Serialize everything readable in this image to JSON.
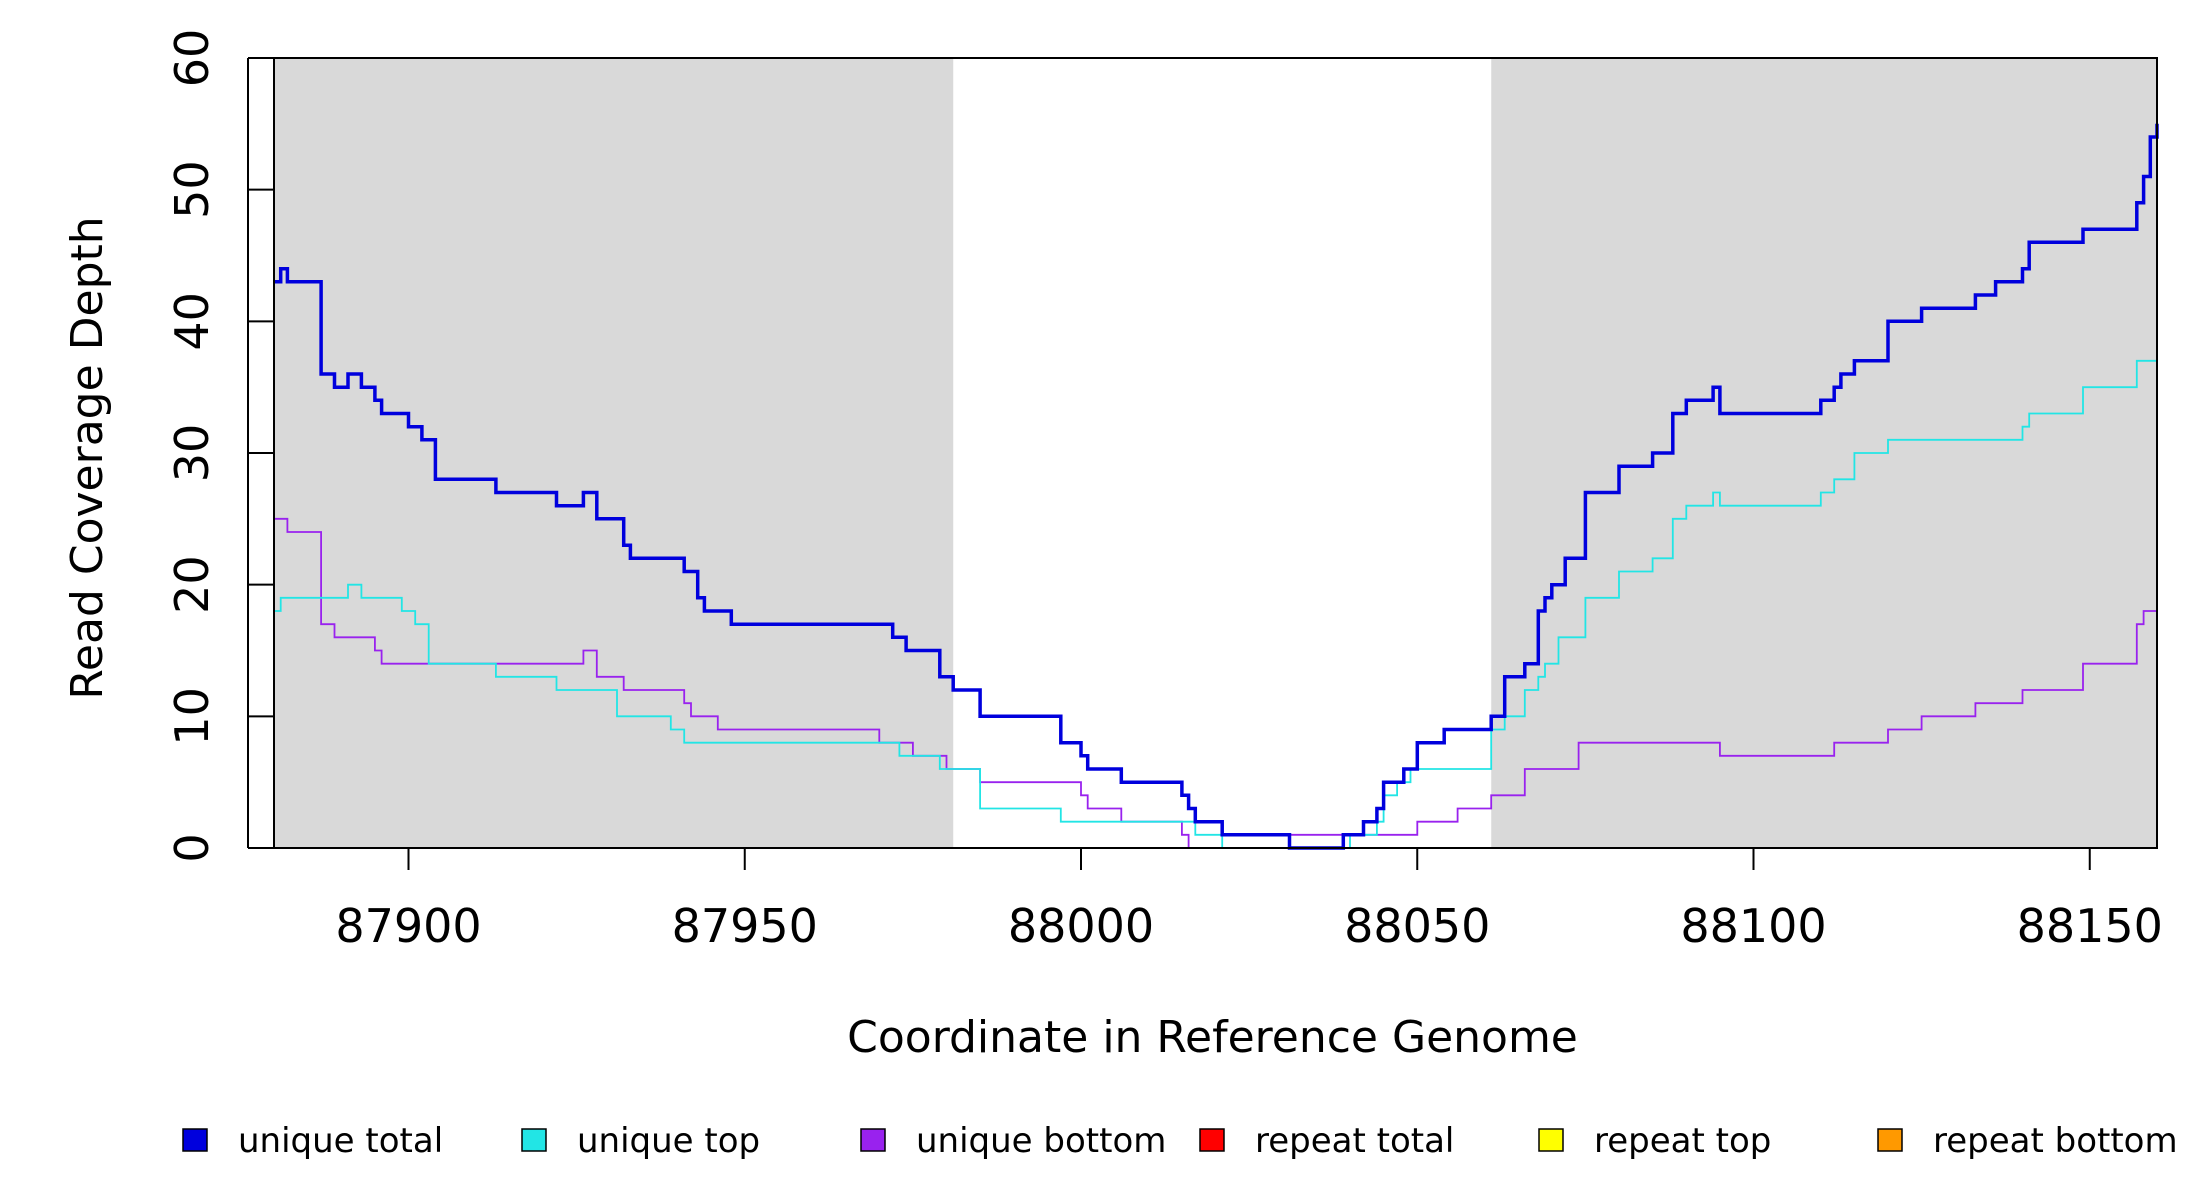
{
  "chart_data": {
    "type": "line",
    "title": "",
    "xlabel": "Coordinate in Reference Genome",
    "ylabel": "Read Coverage Depth",
    "xlim": [
      87880,
      88160
    ],
    "ylim": [
      0,
      60
    ],
    "x_ticks": [
      87900,
      87950,
      88000,
      88050,
      88100,
      88150
    ],
    "x_tick_labels": [
      "87900",
      "87950",
      "88000",
      "88050",
      "88100",
      "88150"
    ],
    "y_ticks": [
      0,
      10,
      20,
      30,
      40,
      50,
      60
    ],
    "y_tick_labels": [
      "0",
      "10",
      "20",
      "30",
      "40",
      "50",
      "60"
    ],
    "shaded_regions": [
      {
        "x0": 87880,
        "x1": 87981,
        "color": "#d9d9d9"
      },
      {
        "x0": 88061,
        "x1": 88160,
        "color": "#d9d9d9"
      }
    ],
    "grid": false,
    "legend_position": "bottom",
    "series": [
      {
        "name": "unique total",
        "color": "#0000dd",
        "style": "step",
        "width": "thick",
        "x": [
          87880,
          87881,
          87882,
          87887,
          87889,
          87891,
          87893,
          87895,
          87896,
          87897,
          87900,
          87902,
          87904,
          87913,
          87922,
          87926,
          87928,
          87932,
          87933,
          87941,
          87943,
          87944,
          87948,
          87963,
          87972,
          87974,
          87979,
          87981,
          87985,
          87997,
          88000,
          88001,
          88006,
          88015,
          88016,
          88017,
          88021,
          88031,
          88039,
          88042,
          88044,
          88045,
          88048,
          88050,
          88054,
          88061,
          88063,
          88066,
          88068,
          88069,
          88070,
          88072,
          88075,
          88080,
          88085,
          88088,
          88090,
          88094,
          88095,
          88108,
          88110,
          88112,
          88113,
          88115,
          88120,
          88125,
          88133,
          88136,
          88140,
          88141,
          88149,
          88157,
          88158,
          88159,
          88160
        ],
        "y": [
          43,
          44,
          43,
          36,
          35,
          36,
          35,
          34,
          33,
          33,
          32,
          31,
          28,
          27,
          26,
          27,
          25,
          23,
          22,
          21,
          19,
          18,
          17,
          17,
          16,
          15,
          13,
          12,
          10,
          8,
          7,
          6,
          5,
          4,
          3,
          2,
          1,
          0,
          1,
          2,
          3,
          5,
          6,
          8,
          9,
          10,
          13,
          14,
          18,
          19,
          20,
          22,
          27,
          29,
          30,
          33,
          34,
          35,
          33,
          33,
          34,
          35,
          36,
          37,
          40,
          41,
          42,
          43,
          44,
          46,
          47,
          49,
          51,
          54,
          55
        ]
      },
      {
        "name": "unique top",
        "color": "#22e5e5",
        "style": "step",
        "width": "thin",
        "x": [
          87880,
          87881,
          87891,
          87893,
          87899,
          87901,
          87903,
          87913,
          87922,
          87931,
          87939,
          87941,
          87950,
          87960,
          87970,
          87973,
          87979,
          87981,
          87985,
          87997,
          88007,
          88016,
          88017,
          88021,
          88031,
          88040,
          88044,
          88045,
          88047,
          88049,
          88061,
          88063,
          88066,
          88068,
          88069,
          88071,
          88075,
          88080,
          88085,
          88088,
          88090,
          88094,
          88095,
          88108,
          88110,
          88112,
          88113,
          88115,
          88120,
          88125,
          88133,
          88136,
          88140,
          88141,
          88149,
          88157,
          88160
        ],
        "y": [
          18,
          19,
          20,
          19,
          18,
          17,
          14,
          13,
          12,
          10,
          9,
          8,
          8,
          8,
          8,
          7,
          6,
          6,
          3,
          2,
          2,
          2,
          1,
          0,
          0,
          1,
          2,
          4,
          5,
          6,
          9,
          10,
          12,
          13,
          14,
          16,
          19,
          21,
          22,
          25,
          26,
          27,
          26,
          26,
          27,
          28,
          28,
          30,
          31,
          31,
          31,
          31,
          32,
          33,
          35,
          37,
          37
        ]
      },
      {
        "name": "unique bottom",
        "color": "#9922ee",
        "style": "step",
        "width": "thin",
        "x": [
          87880,
          87882,
          87887,
          87889,
          87895,
          87896,
          87897,
          87904,
          87913,
          87922,
          87926,
          87928,
          87932,
          87941,
          87942,
          87943,
          87946,
          87950,
          87960,
          87970,
          87973,
          87975,
          87980,
          87985,
          88000,
          88001,
          88006,
          88015,
          88016,
          88021,
          88031,
          88040,
          88050,
          88056,
          88061,
          88066,
          88074,
          88090,
          88095,
          88107,
          88112,
          88120,
          88125,
          88133,
          88140,
          88149,
          88157,
          88158,
          88160
        ],
        "y": [
          25,
          24,
          17,
          16,
          15,
          14,
          14,
          14,
          14,
          14,
          15,
          13,
          12,
          11,
          10,
          10,
          9,
          9,
          9,
          8,
          8,
          7,
          6,
          5,
          4,
          3,
          2,
          1,
          0,
          0,
          1,
          1,
          2,
          3,
          4,
          6,
          8,
          8,
          7,
          7,
          8,
          9,
          10,
          11,
          12,
          14,
          17,
          18,
          18
        ]
      },
      {
        "name": "repeat total",
        "color": "#ff0000",
        "style": "step",
        "width": "thin",
        "x": [
          87880,
          88160
        ],
        "y": [
          0,
          0
        ]
      },
      {
        "name": "repeat top",
        "color": "#ffff00",
        "style": "step",
        "width": "thin",
        "x": [
          87880,
          88160
        ],
        "y": [
          0,
          0
        ]
      },
      {
        "name": "repeat bottom",
        "color": "#ff9900",
        "style": "step",
        "width": "thin",
        "x": [
          87880,
          88160
        ],
        "y": [
          0,
          0
        ]
      }
    ]
  }
}
